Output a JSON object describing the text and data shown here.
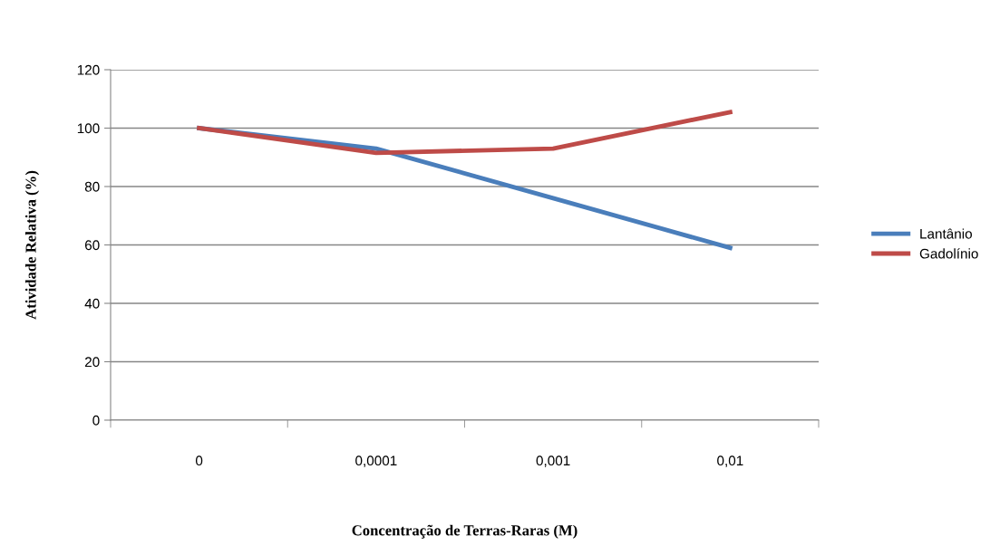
{
  "chart_data": {
    "type": "line",
    "xlabel": "Concentração de Terras-Raras (M)",
    "ylabel": "Atividade Relativa (%)",
    "categories": [
      "0",
      "0,0001",
      "0,001",
      "0,01"
    ],
    "series": [
      {
        "name": "Lantânio",
        "color": "#4a7ebb",
        "values": [
          100,
          93,
          76,
          59
        ]
      },
      {
        "name": "Gadolínio",
        "color": "#be4b48",
        "values": [
          100,
          91.5,
          93,
          105.5
        ]
      }
    ],
    "ylim": [
      0,
      120
    ],
    "yticks": [
      0,
      20,
      40,
      60,
      80,
      100,
      120
    ],
    "grid": "y",
    "legend": "right",
    "marker": "none",
    "line_style": "solid"
  }
}
